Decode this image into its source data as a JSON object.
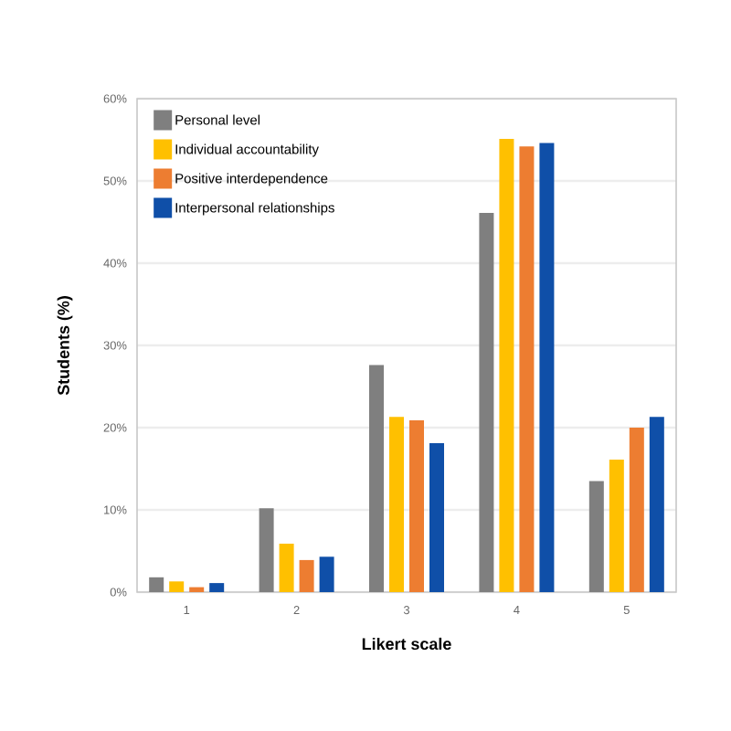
{
  "chart_data": {
    "type": "bar",
    "xlabel": "Likert scale",
    "ylabel": "Students (%)",
    "categories": [
      "1",
      "2",
      "3",
      "4",
      "5"
    ],
    "series": [
      {
        "name": "Personal level",
        "color": "#7f7f7f",
        "values": [
          1.8,
          10.2,
          27.6,
          46.1,
          13.5
        ]
      },
      {
        "name": "Individual accountability",
        "color": "#ffc000",
        "values": [
          1.3,
          5.9,
          21.3,
          55.1,
          16.1
        ]
      },
      {
        "name": "Positive interdependence",
        "color": "#ed7d31",
        "values": [
          0.6,
          3.9,
          20.9,
          54.2,
          20.0
        ]
      },
      {
        "name": "Interpersonal relationships",
        "color": "#0f4fa8",
        "values": [
          1.1,
          4.3,
          18.1,
          54.6,
          21.3
        ]
      }
    ],
    "ylim": [
      0,
      60
    ],
    "yticks": [
      {
        "value": 0,
        "label": "0%"
      },
      {
        "value": 10,
        "label": "10%"
      },
      {
        "value": 20,
        "label": "20%"
      },
      {
        "value": 30,
        "label": "30%"
      },
      {
        "value": 40,
        "label": "40%"
      },
      {
        "value": 50,
        "label": "50%"
      },
      {
        "value": 60,
        "label": "60%"
      }
    ],
    "grid": "y",
    "legend": "top left"
  }
}
